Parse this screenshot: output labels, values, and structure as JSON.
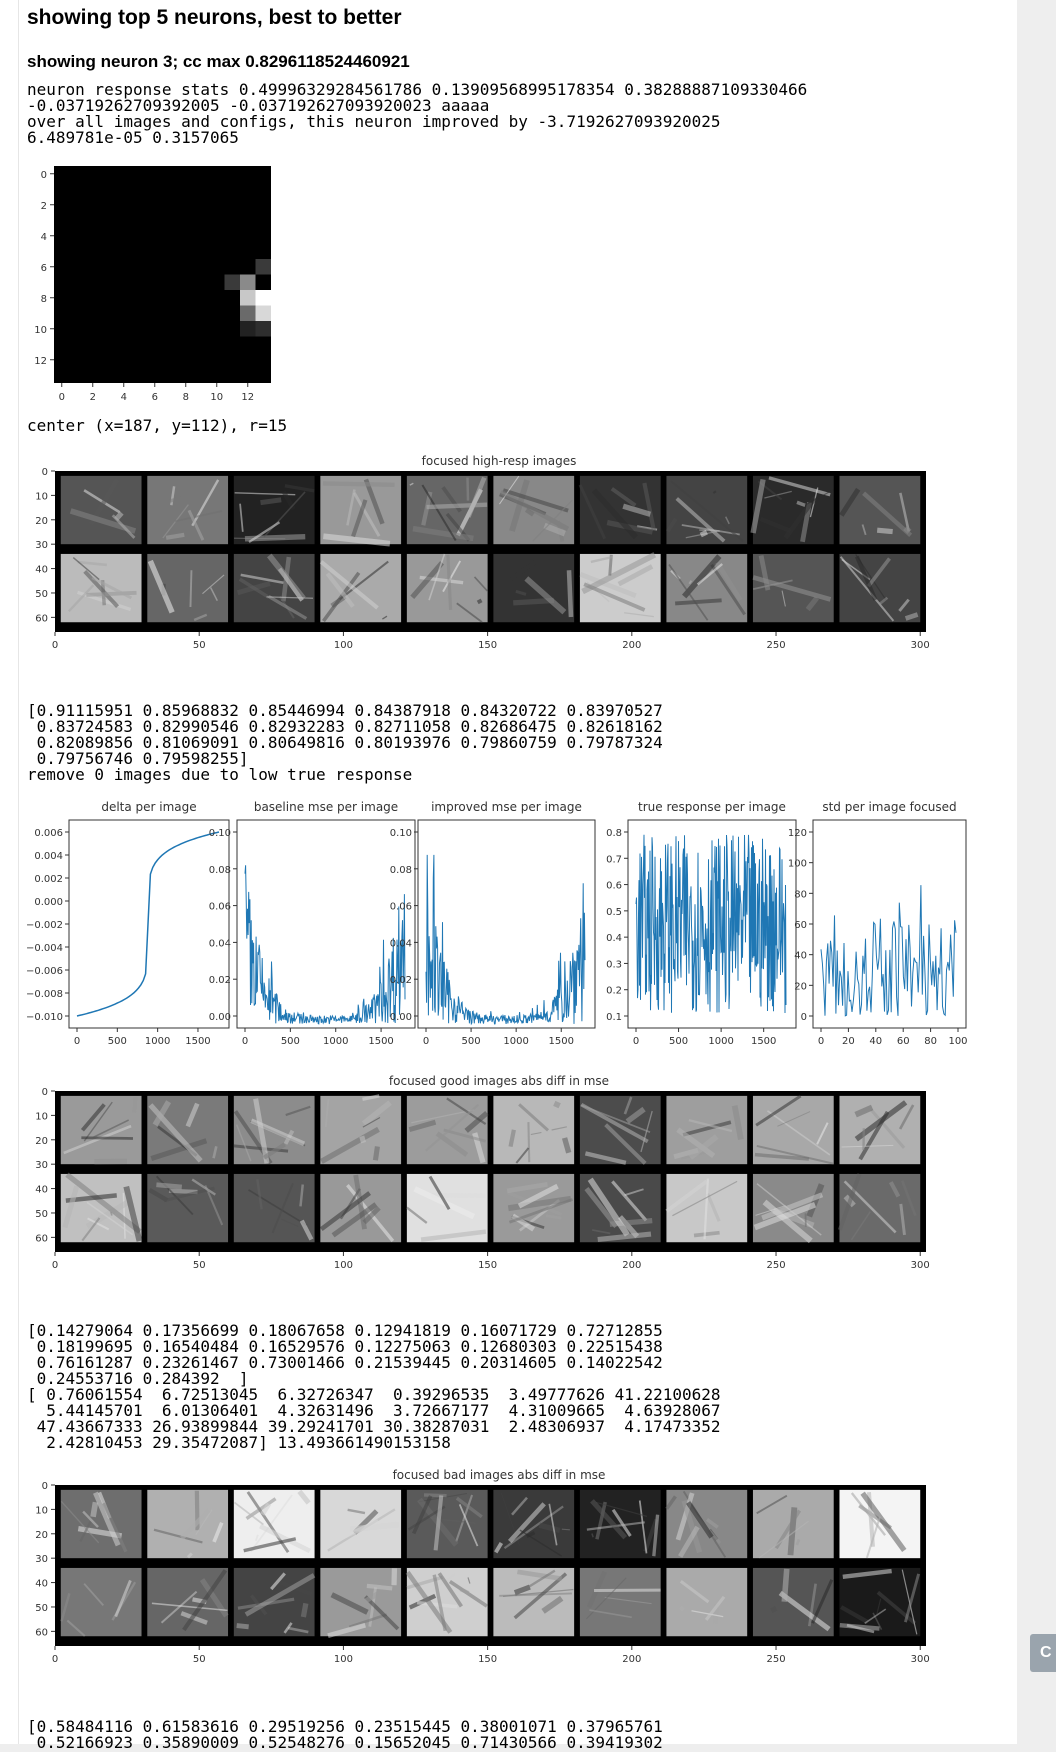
{
  "header": {
    "title": "showing top 5 neurons, best to better"
  },
  "neuron": {
    "title": "showing neuron 3; cc max 0.8296118524460921",
    "stats_text": "neuron response stats 0.49996329284561786 0.13909568995178354 0.38288887109330466\n-0.03719262709392005 -0.037192627093920023 aaaaa\nover all images and configs, this neuron improved by -3.7192627093920025\n6.489781e-05 0.3157065",
    "center_text": "center (x=187, y=112), r=15"
  },
  "rf_map": {
    "ticks": [
      "0",
      "2",
      "4",
      "6",
      "8",
      "10",
      "12"
    ]
  },
  "high_resp": {
    "title": "focused high-resp images",
    "values_text": "[0.91115951 0.85968832 0.85446994 0.84387918 0.84320722 0.83970527\n 0.83724583 0.82990546 0.82932283 0.82711058 0.82686475 0.82618162\n 0.82089856 0.81069091 0.80649816 0.80193976 0.79860759 0.79787324\n 0.79756746 0.79598255]",
    "remove_text": "remove 0 images due to low true response"
  },
  "montage_axes": {
    "y_ticks": [
      "0",
      "10",
      "20",
      "30",
      "40",
      "50",
      "60"
    ],
    "x_ticks": [
      "0",
      "50",
      "100",
      "150",
      "200",
      "250",
      "300"
    ]
  },
  "mini_plots": [
    {
      "title": "delta per image",
      "y_ticks": [
        "0.006",
        "0.004",
        "0.002",
        "0.000",
        "−0.002",
        "−0.004",
        "−0.006",
        "−0.008",
        "−0.010"
      ],
      "x_ticks": [
        "0",
        "500",
        "1000",
        "1500"
      ]
    },
    {
      "title": "baseline mse per image",
      "y_ticks": [
        "0.10",
        "0.08",
        "0.06",
        "0.04",
        "0.02",
        "0.00"
      ],
      "x_ticks": [
        "0",
        "500",
        "1000",
        "1500"
      ]
    },
    {
      "title": "improved mse per image",
      "y_ticks": [
        "0.10",
        "0.08",
        "0.06",
        "0.04",
        "0.02",
        "0.00"
      ],
      "x_ticks": [
        "0",
        "500",
        "1000",
        "1500"
      ]
    },
    {
      "title": "true response per image",
      "y_ticks": [
        "0.8",
        "0.7",
        "0.6",
        "0.5",
        "0.4",
        "0.3",
        "0.2",
        "0.1"
      ],
      "x_ticks": [
        "0",
        "500",
        "1000",
        "1500"
      ]
    },
    {
      "title": "std per image focused",
      "y_ticks": [
        "120",
        "100",
        "80",
        "60",
        "40",
        "20",
        "0"
      ],
      "x_ticks": [
        "0",
        "20",
        "40",
        "60",
        "80",
        "100"
      ]
    }
  ],
  "good_images": {
    "title": "focused good images abs diff in mse",
    "values_text": "[0.14279064 0.17356699 0.18067658 0.12941819 0.16071729 0.72712855\n 0.18199695 0.16540484 0.16529576 0.12275063 0.12680303 0.22515438\n 0.76161287 0.23261467 0.73001466 0.21539445 0.20314605 0.14022542\n 0.24553716 0.284392  ]\n[ 0.76061554  6.72513045  6.32726347  0.39296535  3.49777626 41.22100628\n  5.44145701  6.01306401  4.32631496  3.72667177  4.31009665  4.63928067\n 47.43667333 26.93899844 39.29241701 30.38287031  2.48306937  4.17473352\n  2.42810453 29.35472087] 13.493661490153158"
  },
  "bad_images": {
    "title": "focused bad images abs diff in mse",
    "values_text": "[0.58484116 0.61583616 0.29519256 0.23515445 0.38001071 0.37965761\n 0.52166923 0.35890009 0.52548276 0.15652045 0.71430566 0.39419302"
  },
  "side_button": {
    "label": "C"
  }
}
